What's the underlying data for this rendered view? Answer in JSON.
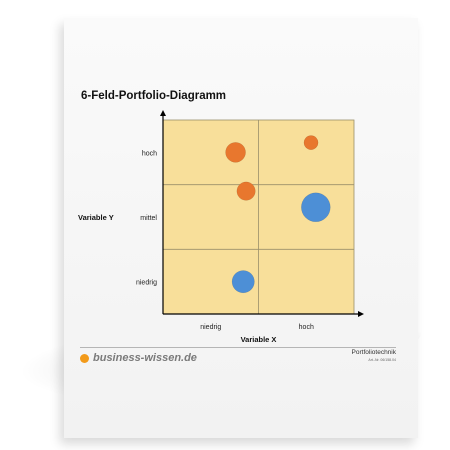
{
  "document": {
    "title": "6-Feld-Portfolio-Diagramm",
    "brand": "business-wissen.de",
    "doc_type": "Portfoliotechnik",
    "doc_number": "Art.-Nr. 06/158.04"
  },
  "chart_data": {
    "type": "scatter",
    "title": "6-Feld-Portfolio-Diagramm",
    "xlabel": "Variable X",
    "ylabel": "Variable Y",
    "x_categories": [
      "niedrig",
      "hoch"
    ],
    "y_categories": [
      "niedrig",
      "mittel",
      "hoch"
    ],
    "xlim": [
      0,
      2
    ],
    "ylim": [
      0,
      3
    ],
    "grid": true,
    "colors": {
      "background": "#f8df9a",
      "grid": "#9a8f6a",
      "orange": "#e8772e",
      "blue": "#4d8fd6"
    },
    "bubbles": [
      {
        "x": 0.76,
        "y": 2.5,
        "size": 1.0,
        "color": "orange"
      },
      {
        "x": 1.55,
        "y": 2.65,
        "size": 0.5,
        "color": "orange"
      },
      {
        "x": 0.87,
        "y": 1.9,
        "size": 0.85,
        "color": "orange"
      },
      {
        "x": 1.6,
        "y": 1.65,
        "size": 2.1,
        "color": "blue"
      },
      {
        "x": 0.84,
        "y": 0.5,
        "size": 1.25,
        "color": "blue"
      }
    ]
  }
}
